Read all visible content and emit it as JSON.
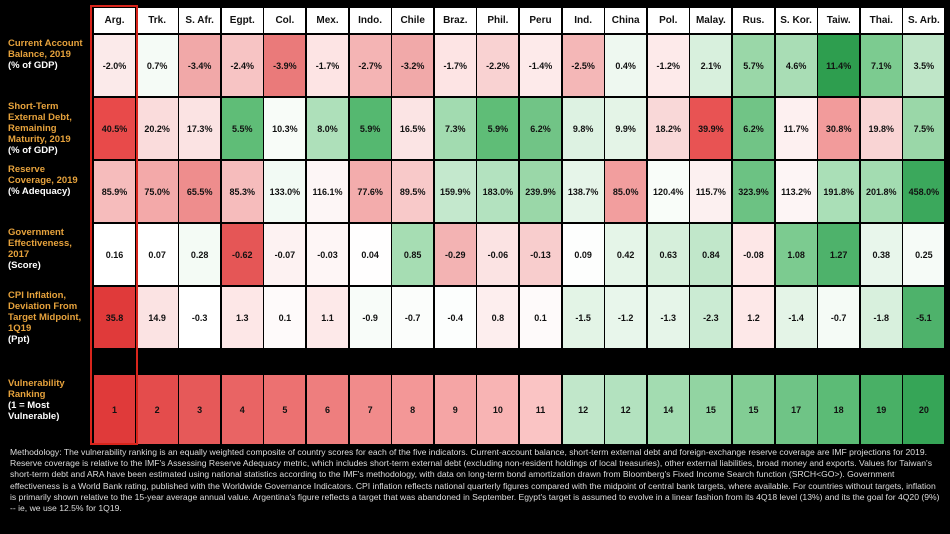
{
  "countries": [
    "Arg.",
    "Trk.",
    "S. Afr.",
    "Egpt.",
    "Col.",
    "Mex.",
    "Indo.",
    "Chile",
    "Braz.",
    "Phil.",
    "Peru",
    "Ind.",
    "China",
    "Pol.",
    "Malay.",
    "Rus.",
    "S. Kor.",
    "Taiw.",
    "Thai.",
    "S. Arb."
  ],
  "rows": [
    {
      "label": "Current Account Balance, 2019",
      "unit": "(% of GDP)",
      "values": [
        "-2.0%",
        "0.7%",
        "-3.4%",
        "-2.4%",
        "-3.9%",
        "-1.7%",
        "-2.7%",
        "-3.2%",
        "-1.7%",
        "-2.2%",
        "-1.4%",
        "-2.5%",
        "0.4%",
        "-1.2%",
        "2.1%",
        "5.7%",
        "4.6%",
        "11.4%",
        "7.1%",
        "3.5%"
      ],
      "colors": [
        "#fbeaea",
        "#f5fbf6",
        "#f1a8a8",
        "#f7c4c4",
        "#ea7a7a",
        "#fde4e4",
        "#f4b4b4",
        "#f1a9a9",
        "#fde4e4",
        "#f9d2d2",
        "#fdeaea",
        "#f4b7b7",
        "#eef8f0",
        "#fdeaea",
        "#d8f0dd",
        "#9ad7a8",
        "#a9ddb5",
        "#2e9e4f",
        "#7ccb90",
        "#bfe6c8"
      ]
    },
    {
      "label": "Short-Term External Debt, Remaining Maturity, 2019",
      "unit": "(% of GDP)",
      "values": [
        "40.5%",
        "20.2%",
        "17.3%",
        "5.5%",
        "10.3%",
        "8.0%",
        "5.9%",
        "16.5%",
        "7.3%",
        "5.9%",
        "6.2%",
        "9.8%",
        "9.9%",
        "18.2%",
        "39.9%",
        "6.2%",
        "11.7%",
        "30.8%",
        "19.8%",
        "7.5%"
      ],
      "colors": [
        "#e84a4a",
        "#fadcdc",
        "#fbe3e3",
        "#5fbd77",
        "#f8fcf8",
        "#aee0ba",
        "#55b870",
        "#fbe4e4",
        "#a2dbb0",
        "#5fbd77",
        "#71c486",
        "#ddf2e2",
        "#e4f4e7",
        "#f9d8d8",
        "#e85353",
        "#71c486",
        "#fdf0f0",
        "#f29b9b",
        "#f9d4d4",
        "#9ad7a8"
      ]
    },
    {
      "label": "Reserve Coverage, 2019",
      "unit": "(% Adequacy)",
      "values": [
        "85.9%",
        "75.0%",
        "65.5%",
        "85.3%",
        "133.0%",
        "116.1%",
        "77.6%",
        "89.5%",
        "159.9%",
        "183.0%",
        "239.9%",
        "138.7%",
        "85.0%",
        "120.4%",
        "115.7%",
        "323.9%",
        "113.2%",
        "191.8%",
        "201.8%",
        "458.0%"
      ],
      "colors": [
        "#f6bcbc",
        "#f3a9a9",
        "#ee8d8d",
        "#f6bcbc",
        "#f2faf4",
        "#fdf6f6",
        "#f3acac",
        "#f8c9c9",
        "#c4e8cd",
        "#b3e2bf",
        "#9ad7a8",
        "#e6f5e9",
        "#f29e9e",
        "#f9fdf9",
        "#fcf0f0",
        "#6cc283",
        "#fdf5f5",
        "#aadfb7",
        "#a3dcb1",
        "#3ba85c"
      ]
    },
    {
      "label": "Government Effectiveness, 2017",
      "unit": "(Score)",
      "values": [
        "0.16",
        "0.07",
        "0.28",
        "-0.62",
        "-0.07",
        "-0.03",
        "0.04",
        "0.85",
        "-0.29",
        "-0.06",
        "-0.13",
        "0.09",
        "0.42",
        "0.63",
        "0.84",
        "-0.08",
        "1.08",
        "1.27",
        "0.38",
        "0.25"
      ],
      "colors": [
        "#ffffff",
        "#ffffff",
        "#f4fbf5",
        "#e55656",
        "#fdf2f2",
        "#fef6f6",
        "#fffefe",
        "#a6ddb3",
        "#f3b3b3",
        "#fbe3e3",
        "#f8cdcd",
        "#fdfefd",
        "#e5f5e8",
        "#d6efdb",
        "#c1e7ca",
        "#fde7e7",
        "#7ccb90",
        "#4eb26b",
        "#e8f6eb",
        "#f6fbf7"
      ]
    },
    {
      "label": "CPI Inflation, Deviation From Target Midpoint, 1Q19",
      "unit": "(Ppt)",
      "values": [
        "35.8",
        "14.9",
        "-0.3",
        "1.3",
        "0.1",
        "1.1",
        "-0.9",
        "-0.7",
        "-0.4",
        "0.8",
        "0.1",
        "-1.5",
        "-1.2",
        "-1.3",
        "-2.3",
        "1.2",
        "-1.4",
        "-0.7",
        "-1.8",
        "-5.1"
      ],
      "colors": [
        "#e03a3a",
        "#fbe3e3",
        "#ffffff",
        "#fde7e7",
        "#fefafa",
        "#fde9e9",
        "#f8fcf9",
        "#fbfdfb",
        "#fcfefd",
        "#fdeeee",
        "#fefafa",
        "#e3f4e6",
        "#e8f6eb",
        "#e6f5e9",
        "#cbebd3",
        "#fde8e8",
        "#e4f4e7",
        "#f5fbf6",
        "#d8f0dd",
        "#4eb26b"
      ]
    },
    {
      "label": "Vulnerability Ranking",
      "unit": "(1 = Most Vulnerable)",
      "values": [
        "1",
        "2",
        "3",
        "4",
        "5",
        "6",
        "7",
        "8",
        "9",
        "10",
        "11",
        "12",
        "12",
        "14",
        "15",
        "15",
        "17",
        "18",
        "19",
        "20"
      ],
      "colors": [
        "#e03a3a",
        "#e44c4c",
        "#e65959",
        "#e96464",
        "#ec7171",
        "#ee7e7e",
        "#f18b8b",
        "#f39797",
        "#f5a5a5",
        "#f8b4b4",
        "#fac4c4",
        "#c1e7ca",
        "#b3e2bf",
        "#a3dcb1",
        "#92d4a2",
        "#82cd94",
        "#6fc486",
        "#5cbb76",
        "#49b066",
        "#36a557"
      ]
    }
  ],
  "methodology": "Methodology: The vulnerability ranking is an equally weighted composite of country scores for each of the five indicators. Current-account balance, short-term external debt and foreign-exchange reserve coverage are IMF projections for 2019. Reserve coverage is relative to the IMF's Assessing Reserve Adequacy metric, which includes short-term external debt (excluding non-resident holdings of local treasuries), other external liabilities, broad money and exports. Values for Taiwan's short-term debt and ARA have been estimated using national statistics according to the IMF's methodology, with data on long-term bond amortization drawn from Bloomberg's Fixed Income Search function (SRCH<GO>). Government effectiveness is a World Bank rating, published with the Worldwide Governance Indicators. CPI inflation reflects national quarterly figures compared with the midpoint of central bank targets, where available. For countries without targets, inflation is primarily shown relative to the 15-year average annual value. Argentina's figure reflects a target that was abandoned in September. Egypt's target is assumed to evolve in a linear fashion from its 4Q18 level (13%) and its the goal for 4Q20 (9%) -- ie, we use 12.5% for 1Q19."
}
